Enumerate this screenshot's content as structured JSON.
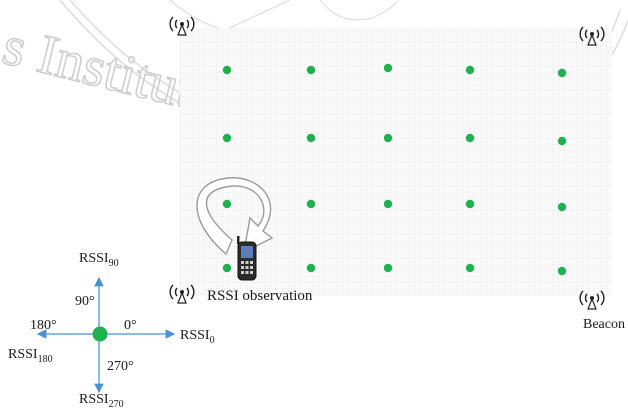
{
  "watermark": {
    "text": "s Institute of Technolo",
    "color": "#c8c8c8"
  },
  "diagram": {
    "grid_rows": 4,
    "grid_cols": 5,
    "point_color": "#1fb04f",
    "axis_color": "#4a90d9",
    "beacon_label": "Beacon",
    "observation_label": "RSSI observation",
    "icons": {
      "beacon": "antenna-icon",
      "device": "mobile-phone-icon",
      "arrow": "curved-arrow-icon"
    },
    "compass": {
      "angle_90": "90°",
      "angle_180": "180°",
      "angle_0": "0°",
      "angle_270": "270°",
      "rssi_base": "RSSI",
      "sub_90": "90",
      "sub_180": "180",
      "sub_0": "0",
      "sub_270": "270"
    }
  }
}
